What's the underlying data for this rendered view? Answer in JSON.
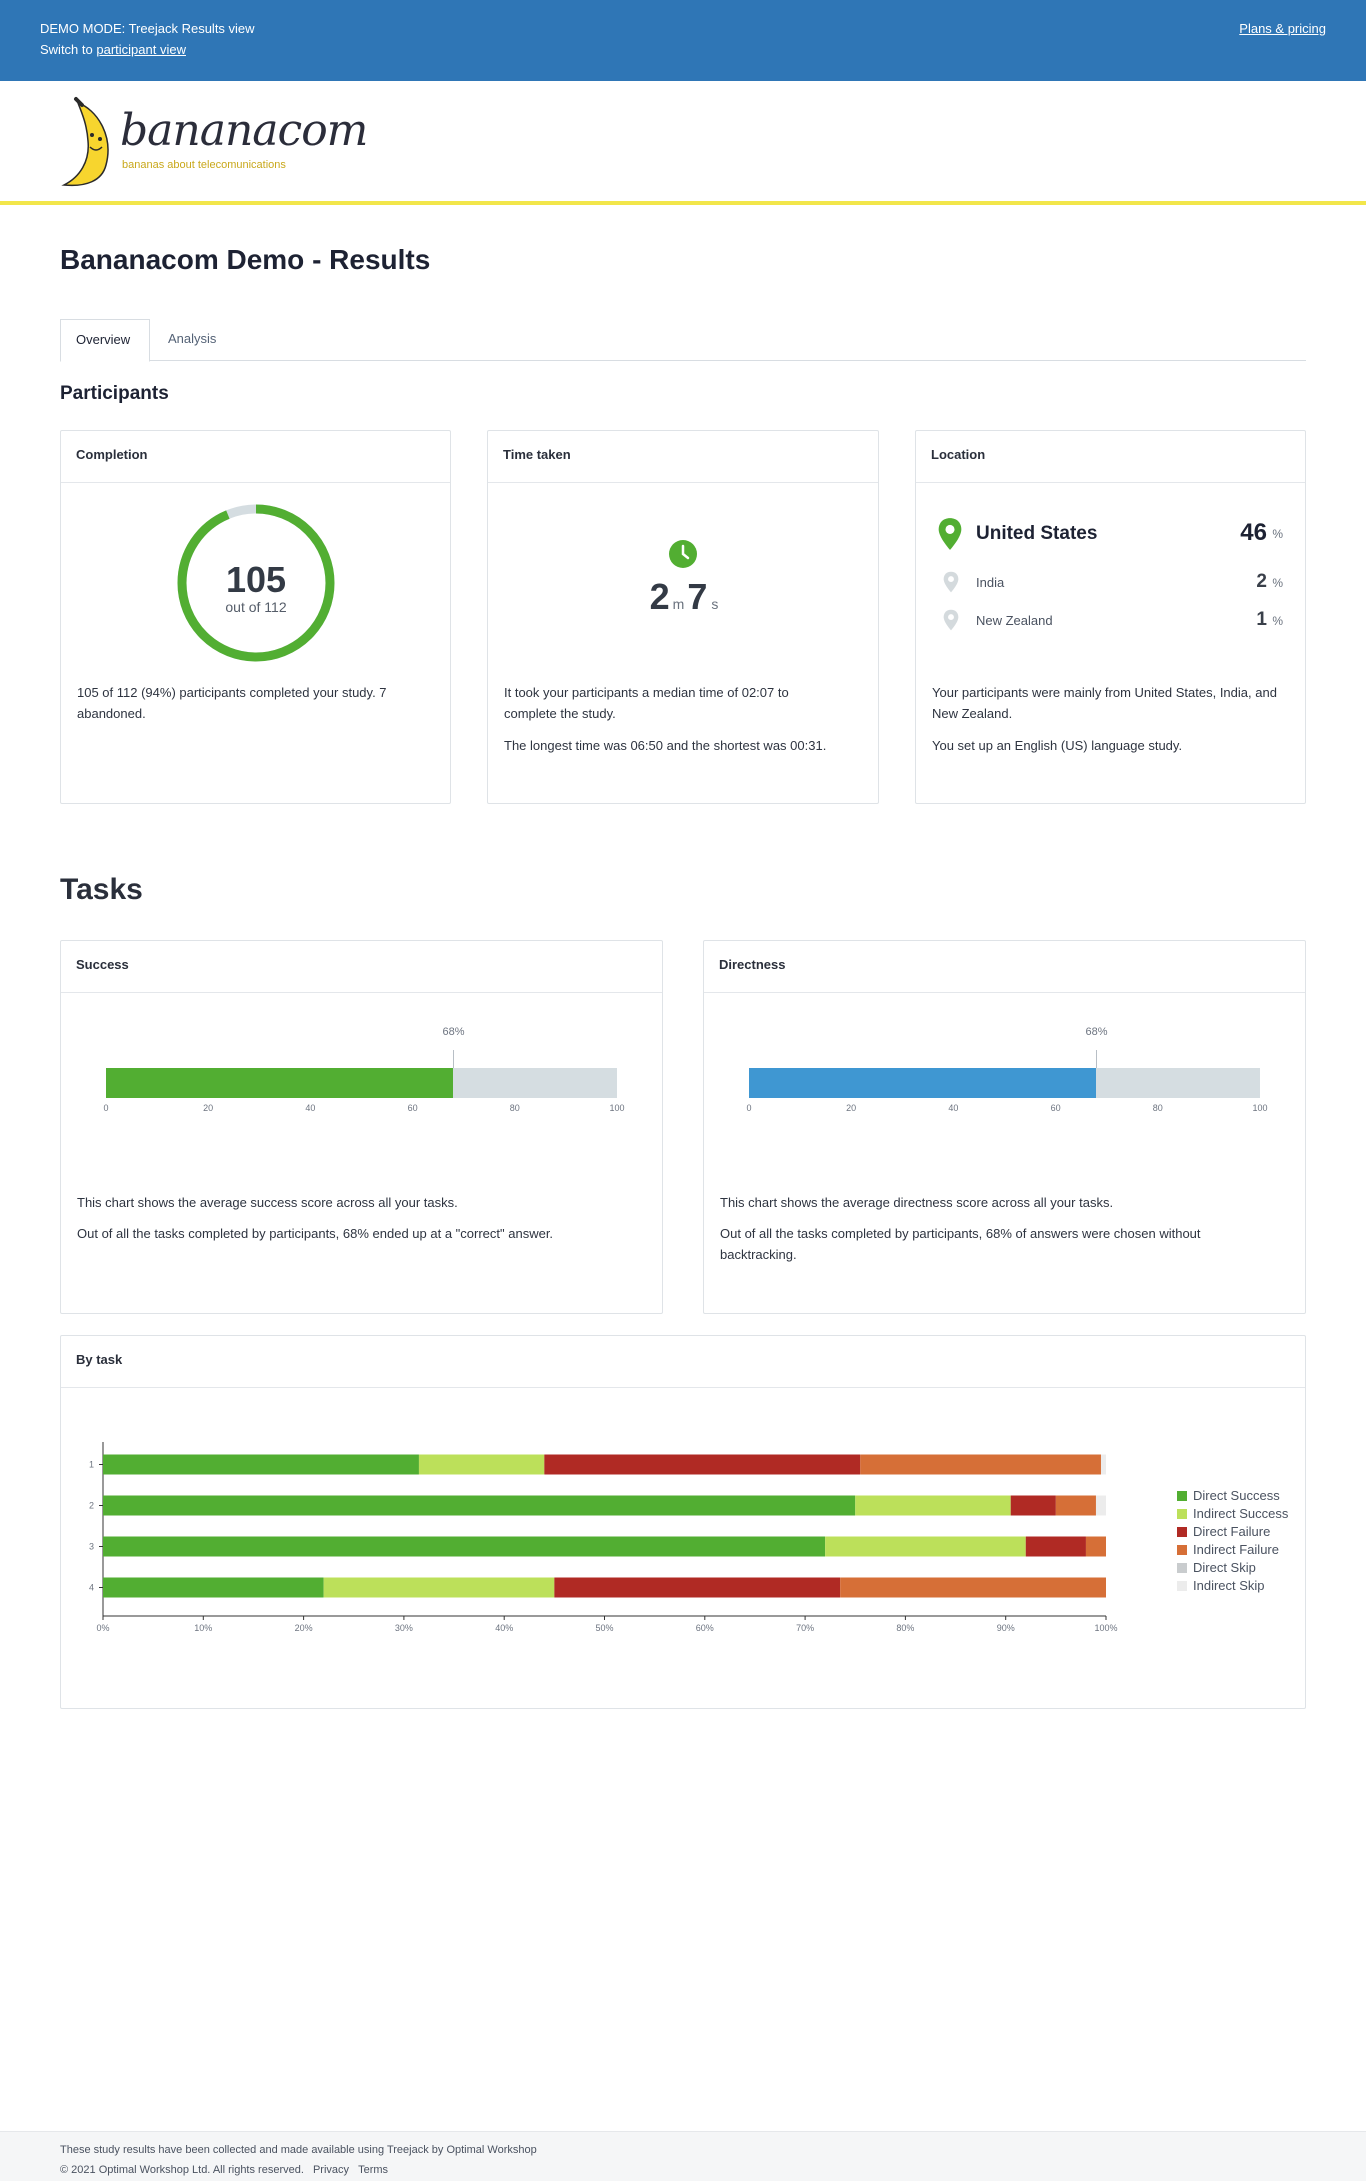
{
  "demo_bar": {
    "mode_text": "DEMO MODE: Treejack Results view",
    "switch_prefix": "Switch to",
    "switch_link": "participant view",
    "pricing_link": "Plans & pricing"
  },
  "brand": {
    "name_main": "banana",
    "name_suffix": "com",
    "tagline": "bananas about telecomunications"
  },
  "page": {
    "title": "Bananacom Demo - Results",
    "tabs": [
      {
        "label": "Overview",
        "active": true
      },
      {
        "label": "Analysis",
        "active": false
      }
    ]
  },
  "participants": {
    "heading": "Participants",
    "completion": {
      "title": "Completion",
      "completed": "105",
      "out_of": "out of 112",
      "completed_fraction": 0.9375,
      "text": "105 of 112 (94%) participants completed your study. 7 abandoned."
    },
    "time_taken": {
      "title": "Time taken",
      "minutes": "2",
      "minutes_unit": "m",
      "seconds": "7",
      "seconds_unit": "s",
      "text1": "It took your participants a median time of 02:07 to complete the study.",
      "text2": "The longest time was 06:50 and the shortest was 00:31."
    },
    "location": {
      "title": "Location",
      "rows": [
        {
          "country": "United States",
          "value": "46",
          "unit": "%"
        },
        {
          "country": "India",
          "value": "2",
          "unit": "%"
        },
        {
          "country": "New Zealand",
          "value": "1",
          "unit": "%"
        }
      ],
      "text1": "Your participants were mainly from United States, India, and New Zealand.",
      "text2": "You set up an English (US) language study."
    }
  },
  "tasks": {
    "heading": "Tasks",
    "success": {
      "title": "Success",
      "value_label": "68%",
      "text1": "This chart shows the average success score across all your tasks.",
      "text2": "Out of all the tasks completed by participants, 68% ended up at a \"correct\" answer."
    },
    "directness": {
      "title": "Directness",
      "value_label": "68%",
      "text1": "This chart shows the average directness score across all your tasks.",
      "text2": "Out of all the tasks completed by participants, 68% of answers were chosen without backtracking."
    },
    "by_task": {
      "title": "By task"
    }
  },
  "chart_data": [
    {
      "type": "bar",
      "categories": [
        "Success"
      ],
      "values": [
        68
      ],
      "xlim": [
        0,
        100
      ],
      "ticks": [
        "0",
        "20",
        "40",
        "60",
        "80",
        "100"
      ],
      "colors": {
        "fill": "#52ae32",
        "track": "#d5dde1"
      }
    },
    {
      "type": "bar",
      "categories": [
        "Directness"
      ],
      "values": [
        68
      ],
      "xlim": [
        0,
        100
      ],
      "ticks": [
        "0",
        "20",
        "40",
        "60",
        "80",
        "100"
      ],
      "colors": {
        "fill": "#3f97d2",
        "track": "#d5dde1"
      }
    },
    {
      "type": "bar",
      "stacked": true,
      "orientation": "horizontal",
      "categories": [
        "1",
        "2",
        "3",
        "4"
      ],
      "xlim": [
        0,
        100
      ],
      "ticks": [
        "0%",
        "10%",
        "20%",
        "30%",
        "40%",
        "50%",
        "60%",
        "70%",
        "80%",
        "90%",
        "100%"
      ],
      "legend": "right",
      "series": [
        {
          "name": "Direct Success",
          "color": "#52ae32",
          "values": [
            31.5,
            75,
            72,
            22
          ]
        },
        {
          "name": "Indirect Success",
          "color": "#bce05a",
          "values": [
            12.5,
            15.5,
            20,
            23
          ]
        },
        {
          "name": "Direct Failure",
          "color": "#b02a24",
          "values": [
            31.5,
            4.5,
            6,
            28.5
          ]
        },
        {
          "name": "Indirect Failure",
          "color": "#d66f37",
          "values": [
            24,
            4,
            2,
            26.5
          ]
        },
        {
          "name": "Direct Skip",
          "color": "#c9ccce",
          "values": [
            0,
            0,
            0,
            0
          ]
        },
        {
          "name": "Indirect Skip",
          "color": "#ececec",
          "values": [
            0.5,
            1,
            0,
            0
          ]
        }
      ]
    }
  ],
  "footer": {
    "line1": "These study results have been collected and made available using Treejack by Optimal Workshop",
    "copyright": "© 2021 Optimal Workshop Ltd. All rights reserved.",
    "privacy": "Privacy",
    "terms": "Terms"
  }
}
